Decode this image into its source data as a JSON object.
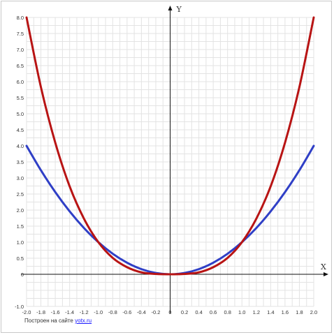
{
  "chart_data": {
    "type": "line",
    "xlabel": "X",
    "ylabel": "Y",
    "xlim": [
      -2.0,
      2.0
    ],
    "ylim": [
      -1.0,
      8.0
    ],
    "grid": true,
    "x_ticks": [
      "-2.0",
      "-1.8",
      "-1.6",
      "-1.4",
      "-1.2",
      "-1.0",
      "-0.8",
      "-0.6",
      "-0.4",
      "-0.2",
      "0",
      "0.2",
      "0.4",
      "0.6",
      "0.8",
      "1.0",
      "1.2",
      "1.4",
      "1.6",
      "1.8",
      "2.0"
    ],
    "y_ticks": [
      "-1.0",
      "0",
      "0.5",
      "1.0",
      "1.5",
      "2.0",
      "2.5",
      "3.0",
      "3.5",
      "4.0",
      "4.5",
      "5.0",
      "5.5",
      "6.0",
      "6.5",
      "7.0",
      "7.5",
      "8.0"
    ],
    "series": [
      {
        "color": "#2f3fc6",
        "x": [
          -2.0,
          -1.8,
          -1.6,
          -1.4,
          -1.2,
          -1.0,
          -0.8,
          -0.6,
          -0.4,
          -0.2,
          0,
          0.2,
          0.4,
          0.6,
          0.8,
          1.0,
          1.2,
          1.4,
          1.6,
          1.8,
          2.0
        ],
        "y": [
          4.0,
          3.24,
          2.56,
          1.96,
          1.44,
          1.0,
          0.64,
          0.36,
          0.16,
          0.04,
          0,
          0.04,
          0.16,
          0.36,
          0.64,
          1.0,
          1.44,
          1.96,
          2.56,
          3.24,
          4.0
        ]
      },
      {
        "color": "#b81414",
        "x": [
          -2.0,
          -1.8,
          -1.6,
          -1.4,
          -1.2,
          -1.0,
          -0.8,
          -0.6,
          -0.4,
          -0.2,
          0,
          0.2,
          0.4,
          0.6,
          0.8,
          1.0,
          1.2,
          1.4,
          1.6,
          1.8,
          2.0
        ],
        "y": [
          8.0,
          5.83,
          4.1,
          2.74,
          1.73,
          1.0,
          0.51,
          0.22,
          0.06,
          0.01,
          0,
          0.01,
          0.06,
          0.22,
          0.51,
          1.0,
          1.73,
          2.74,
          4.1,
          5.83,
          8.0
        ]
      }
    ]
  },
  "footer": {
    "credit_text": "Построен на сайте",
    "credit_link": "yotx.ru"
  }
}
